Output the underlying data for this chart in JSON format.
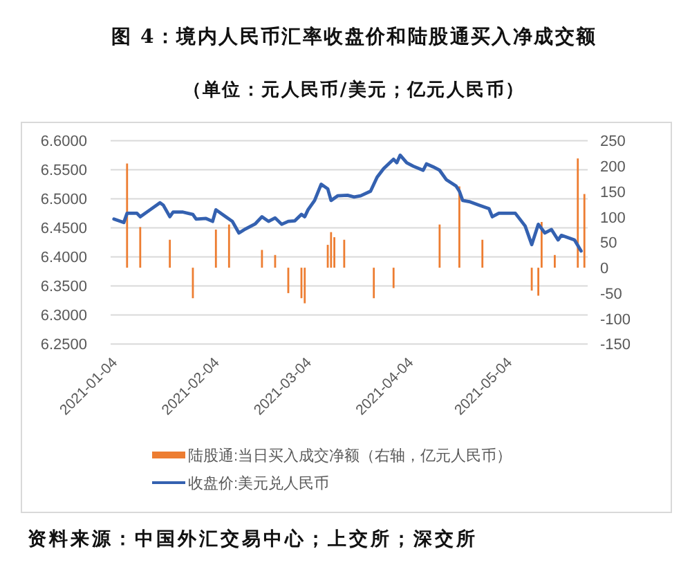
{
  "chart_data": {
    "type": "line",
    "title": "图 4：境内人民币汇率收盘价和陆股通买入净成交额",
    "subtitle": "（单位：元人民币/美元；亿元人民币）",
    "annotations": [
      "资料来源：中国外汇交易中心；上交所；深交所"
    ],
    "series": [
      {
        "name": "陆股通:当日买入成交净额（右轴，亿元人民币）",
        "type": "bar",
        "axis": "y2",
        "color": "#ed7d31",
        "x": [
          "2021-01-08",
          "2021-01-12",
          "2021-01-21",
          "2021-01-28",
          "2021-02-04",
          "2021-02-08",
          "2021-02-18",
          "2021-02-22",
          "2021-02-26",
          "2021-03-02",
          "2021-03-03",
          "2021-03-10",
          "2021-03-11",
          "2021-03-12",
          "2021-03-15",
          "2021-03-24",
          "2021-03-30",
          "2021-04-13",
          "2021-04-19",
          "2021-04-26",
          "2021-05-11",
          "2021-05-13",
          "2021-05-14",
          "2021-05-18",
          "2021-05-25",
          "2021-05-27"
        ],
        "values": [
          205,
          80,
          55,
          -60,
          75,
          85,
          35,
          25,
          -50,
          -60,
          -70,
          45,
          70,
          60,
          55,
          -60,
          -40,
          85,
          160,
          55,
          -45,
          -55,
          90,
          25,
          215,
          145
        ]
      },
      {
        "name": "收盘价:美元兑人民币",
        "color": "#3461b0",
        "x": [
          "2021-01-04",
          "2021-01-07",
          "2021-01-08",
          "2021-01-11",
          "2021-01-12",
          "2021-01-15",
          "2021-01-18",
          "2021-01-19",
          "2021-01-21",
          "2021-01-22",
          "2021-01-25",
          "2021-01-28",
          "2021-01-29",
          "2021-02-01",
          "2021-02-03",
          "2021-02-04",
          "2021-02-07",
          "2021-02-09",
          "2021-02-11",
          "2021-02-13",
          "2021-02-16",
          "2021-02-18",
          "2021-02-20",
          "2021-02-22",
          "2021-02-24",
          "2021-02-26",
          "2021-02-28",
          "2021-03-02",
          "2021-03-03",
          "2021-03-04",
          "2021-03-06",
          "2021-03-08",
          "2021-03-10",
          "2021-03-11",
          "2021-03-13",
          "2021-03-16",
          "2021-03-18",
          "2021-03-20",
          "2021-03-23",
          "2021-03-25",
          "2021-03-27",
          "2021-03-30",
          "2021-03-31",
          "2021-04-01",
          "2021-04-03",
          "2021-04-05",
          "2021-04-08",
          "2021-04-09",
          "2021-04-11",
          "2021-04-13",
          "2021-04-15",
          "2021-04-18",
          "2021-04-19",
          "2021-04-20",
          "2021-04-22",
          "2021-04-25",
          "2021-04-28",
          "2021-04-29",
          "2021-05-01",
          "2021-05-04",
          "2021-05-06",
          "2021-05-09",
          "2021-05-11",
          "2021-05-13",
          "2021-05-15",
          "2021-05-17",
          "2021-05-19",
          "2021-05-20",
          "2021-05-24",
          "2021-05-26"
        ],
        "values": [
          6.465,
          6.459,
          6.475,
          6.475,
          6.469,
          6.481,
          6.493,
          6.489,
          6.469,
          6.477,
          6.477,
          6.473,
          6.465,
          6.466,
          6.461,
          6.481,
          6.469,
          6.461,
          6.441,
          6.448,
          6.457,
          6.469,
          6.461,
          6.467,
          6.456,
          6.461,
          6.462,
          6.473,
          6.469,
          6.481,
          6.497,
          6.525,
          6.517,
          6.497,
          6.505,
          6.506,
          6.503,
          6.505,
          6.513,
          6.537,
          6.552,
          6.568,
          6.562,
          6.575,
          6.562,
          6.556,
          6.549,
          6.56,
          6.555,
          6.549,
          6.533,
          6.522,
          6.513,
          6.497,
          6.495,
          6.489,
          6.483,
          6.469,
          6.475,
          6.475,
          6.475,
          6.453,
          6.421,
          6.456,
          6.441,
          6.447,
          6.429,
          6.437,
          6.429,
          6.41
        ]
      }
    ],
    "xlim": [
      "2021-01-03",
      "2021-05-28"
    ],
    "xticks": [
      "2021-01-04",
      "2021-02-04",
      "2021-03-04",
      "2021-04-04",
      "2021-05-04"
    ],
    "ylim": [
      6.25,
      6.6
    ],
    "yticks": [
      {
        "value": 6.6,
        "label": "6.6000"
      },
      {
        "value": 6.55,
        "label": "6.5500"
      },
      {
        "value": 6.5,
        "label": "6.5000"
      },
      {
        "value": 6.45,
        "label": "6.4500"
      },
      {
        "value": 6.4,
        "label": "6.4000"
      },
      {
        "value": 6.35,
        "label": "6.3500"
      },
      {
        "value": 6.3,
        "label": "6.3000"
      },
      {
        "value": 6.25,
        "label": "6.2500"
      }
    ],
    "y2lim": [
      -150,
      250
    ],
    "y2ticks": [
      250,
      200,
      150,
      100,
      50,
      0,
      -50,
      -100,
      -150
    ],
    "grid": "y",
    "legend": "bottom"
  }
}
